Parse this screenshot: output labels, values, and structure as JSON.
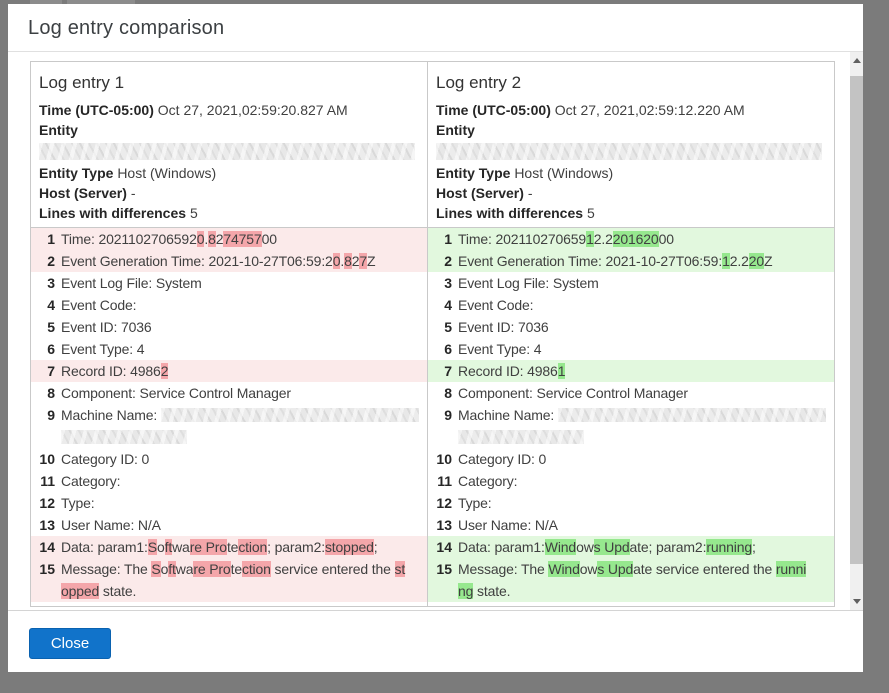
{
  "dialog": {
    "title": "Log entry comparison",
    "close_label": "Close"
  },
  "colors": {
    "accent": "#1173ca",
    "removed_row": "#fbeaea",
    "removed_hl": "#f4a6aa",
    "added_row": "#e2f8de",
    "added_hl": "#96e88e"
  },
  "columns": [
    {
      "title": "Log entry 1",
      "diff_kind": "removed",
      "header": {
        "time_label": "Time (UTC-05:00)",
        "time_value": "Oct 27, 2021,02:59:20.827 AM",
        "entity_label": "Entity",
        "entity_type_label": "Entity Type",
        "entity_type_value": "Host (Windows)",
        "host_label": "Host (Server)",
        "host_value": "-",
        "diff_label": "Lines with differences",
        "diff_count": "5"
      },
      "lines": [
        {
          "n": 1,
          "diff": true,
          "segs": [
            {
              "t": "Time: 2021102706592"
            },
            {
              "t": "0",
              "h": true
            },
            {
              "t": "."
            },
            {
              "t": "8",
              "h": true
            },
            {
              "t": "2"
            },
            {
              "t": "74757",
              "h": true
            },
            {
              "t": "00"
            }
          ]
        },
        {
          "n": 2,
          "diff": true,
          "segs": [
            {
              "t": "Event Generation Time: 2021-10-27T06:59:2"
            },
            {
              "t": "0",
              "h": true
            },
            {
              "t": "."
            },
            {
              "t": "8",
              "h": true
            },
            {
              "t": "2"
            },
            {
              "t": "7",
              "h": true
            },
            {
              "t": "Z"
            }
          ]
        },
        {
          "n": 3,
          "segs": [
            {
              "t": "Event Log File: System"
            }
          ]
        },
        {
          "n": 4,
          "segs": [
            {
              "t": "Event Code:"
            }
          ]
        },
        {
          "n": 5,
          "segs": [
            {
              "t": "Event ID: 7036"
            }
          ]
        },
        {
          "n": 6,
          "segs": [
            {
              "t": "Event Type: 4"
            }
          ]
        },
        {
          "n": 7,
          "diff": true,
          "segs": [
            {
              "t": "Record ID: 4986"
            },
            {
              "t": "2",
              "h": true
            }
          ]
        },
        {
          "n": 8,
          "segs": [
            {
              "t": "Component: Service Control Manager"
            }
          ]
        },
        {
          "n": 9,
          "segs": [
            {
              "t": "Machine Name: "
            },
            {
              "r": 258
            },
            {
              "br": true
            },
            {
              "r": 126
            }
          ]
        },
        {
          "n": 10,
          "segs": [
            {
              "t": "Category ID: 0"
            }
          ]
        },
        {
          "n": 11,
          "segs": [
            {
              "t": "Category:"
            }
          ]
        },
        {
          "n": 12,
          "segs": [
            {
              "t": "Type:"
            }
          ]
        },
        {
          "n": 13,
          "segs": [
            {
              "t": "User Name: N/A"
            }
          ]
        },
        {
          "n": 14,
          "diff": true,
          "segs": [
            {
              "t": "Data: param1:"
            },
            {
              "t": "S",
              "h": true
            },
            {
              "t": "o"
            },
            {
              "t": "ft",
              "h": true
            },
            {
              "t": "wa"
            },
            {
              "t": "re Pro",
              "h": true
            },
            {
              "t": "te"
            },
            {
              "t": "ction",
              "h": true
            },
            {
              "t": "; param2:"
            },
            {
              "t": "stopped",
              "h": true
            },
            {
              "t": ";"
            }
          ]
        },
        {
          "n": 15,
          "diff": true,
          "segs": [
            {
              "t": "Message: The "
            },
            {
              "t": "S",
              "h": true
            },
            {
              "t": "o"
            },
            {
              "t": "ft",
              "h": true
            },
            {
              "t": "wa"
            },
            {
              "t": "re Pro",
              "h": true
            },
            {
              "t": "te"
            },
            {
              "t": "ction",
              "h": true
            },
            {
              "t": " service entered the "
            },
            {
              "t": "st",
              "h": true
            },
            {
              "br": true
            },
            {
              "t": "opped",
              "h": true
            },
            {
              "t": " state."
            }
          ]
        }
      ]
    },
    {
      "title": "Log entry 2",
      "diff_kind": "added",
      "header": {
        "time_label": "Time (UTC-05:00)",
        "time_value": "Oct 27, 2021,02:59:12.220 AM",
        "entity_label": "Entity",
        "entity_type_label": "Entity Type",
        "entity_type_value": "Host (Windows)",
        "host_label": "Host (Server)",
        "host_value": "-",
        "diff_label": "Lines with differences",
        "diff_count": "5"
      },
      "lines": [
        {
          "n": 1,
          "diff": true,
          "segs": [
            {
              "t": "Time: 202110270659"
            },
            {
              "t": "1",
              "h": true
            },
            {
              "t": "2.2"
            },
            {
              "t": "201620",
              "h": true
            },
            {
              "t": "00"
            }
          ]
        },
        {
          "n": 2,
          "diff": true,
          "segs": [
            {
              "t": "Event Generation Time: 2021-10-27T06:59:"
            },
            {
              "t": "1",
              "h": true
            },
            {
              "t": "2.2"
            },
            {
              "t": "20",
              "h": true
            },
            {
              "t": "Z"
            }
          ]
        },
        {
          "n": 3,
          "segs": [
            {
              "t": "Event Log File: System"
            }
          ]
        },
        {
          "n": 4,
          "segs": [
            {
              "t": "Event Code:"
            }
          ]
        },
        {
          "n": 5,
          "segs": [
            {
              "t": "Event ID: 7036"
            }
          ]
        },
        {
          "n": 6,
          "segs": [
            {
              "t": "Event Type: 4"
            }
          ]
        },
        {
          "n": 7,
          "diff": true,
          "segs": [
            {
              "t": "Record ID: 4986"
            },
            {
              "t": "1",
              "h": true
            }
          ]
        },
        {
          "n": 8,
          "segs": [
            {
              "t": "Component: Service Control Manager"
            }
          ]
        },
        {
          "n": 9,
          "segs": [
            {
              "t": "Machine Name: "
            },
            {
              "r": 268
            },
            {
              "br": true
            },
            {
              "r": 126
            }
          ]
        },
        {
          "n": 10,
          "segs": [
            {
              "t": "Category ID: 0"
            }
          ]
        },
        {
          "n": 11,
          "segs": [
            {
              "t": "Category:"
            }
          ]
        },
        {
          "n": 12,
          "segs": [
            {
              "t": "Type:"
            }
          ]
        },
        {
          "n": 13,
          "segs": [
            {
              "t": "User Name: N/A"
            }
          ]
        },
        {
          "n": 14,
          "diff": true,
          "segs": [
            {
              "t": "Data: param1:"
            },
            {
              "t": "Wind",
              "h": true
            },
            {
              "t": "ow"
            },
            {
              "t": "s Upd",
              "h": true
            },
            {
              "t": "ate"
            },
            {
              "t": "; param2:"
            },
            {
              "t": "running",
              "h": true
            },
            {
              "t": ";"
            }
          ]
        },
        {
          "n": 15,
          "diff": true,
          "segs": [
            {
              "t": "Message: The "
            },
            {
              "t": "Wind",
              "h": true
            },
            {
              "t": "ow"
            },
            {
              "t": "s Upd",
              "h": true
            },
            {
              "t": "ate"
            },
            {
              "t": " service entered the "
            },
            {
              "t": "runni",
              "h": true
            },
            {
              "br": true
            },
            {
              "t": "ng",
              "h": true
            },
            {
              "t": " state."
            }
          ]
        }
      ]
    }
  ],
  "scrollbar": {
    "up_icon": "scroll-up",
    "down_icon": "scroll-down"
  }
}
